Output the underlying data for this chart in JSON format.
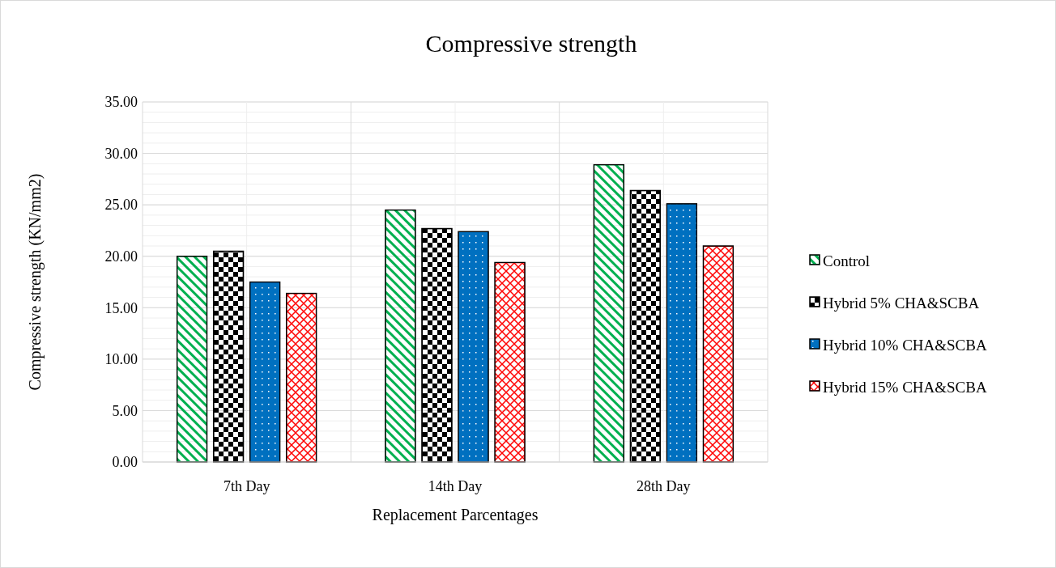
{
  "chart_data": {
    "type": "bar",
    "title": "Compressive strength",
    "xlabel": "Replacement Parcentages",
    "ylabel": "Compressive strength (KN/mm2)",
    "categories": [
      "7th Day",
      "14th Day",
      "28th Day"
    ],
    "series": [
      {
        "name": "Control",
        "color": "#00b050",
        "values": [
          20.0,
          24.5,
          28.9
        ]
      },
      {
        "name": "Hybrid 5% CHA&SCBA",
        "color": "#000000",
        "values": [
          20.5,
          22.7,
          26.4
        ]
      },
      {
        "name": "Hybrid 10% CHA&SCBA",
        "color": "#0070c0",
        "values": [
          17.5,
          22.4,
          25.1
        ]
      },
      {
        "name": "Hybrid 15% CHA&SCBA",
        "color": "#ff0000",
        "values": [
          16.4,
          19.4,
          21.0
        ]
      }
    ],
    "ylim": [
      0,
      35
    ],
    "yticks": [
      {
        "value": 0,
        "label": "0.00"
      },
      {
        "value": 5,
        "label": "5.00"
      },
      {
        "value": 10,
        "label": "10.00"
      },
      {
        "value": 15,
        "label": "15.00"
      },
      {
        "value": 20,
        "label": "20.00"
      },
      {
        "value": 25,
        "label": "25.00"
      },
      {
        "value": 30,
        "label": "30.00"
      },
      {
        "value": 35,
        "label": "35.00"
      }
    ],
    "grid": true,
    "legend": "right"
  }
}
